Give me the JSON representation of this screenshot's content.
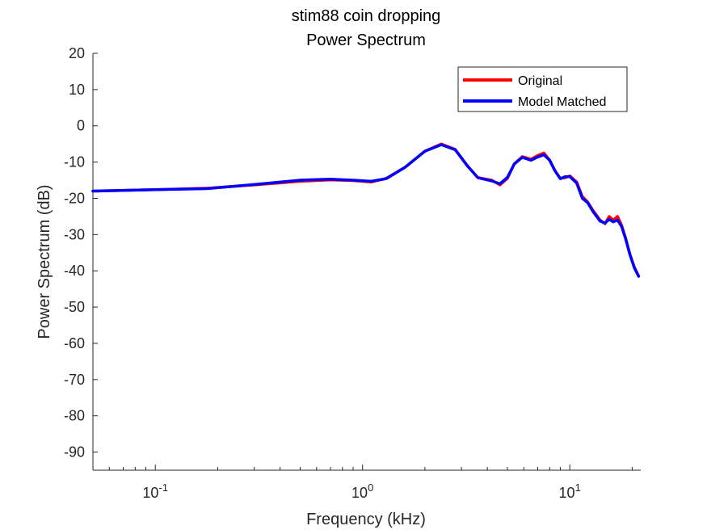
{
  "chart_data": {
    "type": "line",
    "title": "stim88 coin dropping",
    "subtitle": "Power Spectrum",
    "xlabel": "Frequency (kHz)",
    "ylabel": "Power Spectrum (dB)",
    "xscale": "log",
    "xlim": [
      0.05,
      22
    ],
    "ylim": [
      -95,
      20
    ],
    "yticks": [
      20,
      10,
      0,
      -10,
      -20,
      -30,
      -40,
      -50,
      -60,
      -70,
      -80,
      -90
    ],
    "xticks": [
      {
        "value": 0.1,
        "base": "10",
        "exp": "-1"
      },
      {
        "value": 1,
        "base": "10",
        "exp": "0"
      },
      {
        "value": 10,
        "base": "10",
        "exp": "1"
      }
    ],
    "grid": false,
    "legend_position": "top-right",
    "series": [
      {
        "name": "Original",
        "color": "#ff0000",
        "x": [
          0.05,
          0.1,
          0.18,
          0.3,
          0.5,
          0.7,
          0.9,
          1.1,
          1.3,
          1.6,
          2.0,
          2.4,
          2.8,
          3.2,
          3.6,
          4.2,
          4.6,
          5.0,
          5.4,
          5.9,
          6.5,
          7.0,
          7.5,
          8.0,
          8.5,
          9.0,
          9.5,
          10.0,
          10.8,
          11.5,
          12.2,
          13.0,
          14.0,
          14.8,
          15.5,
          16.2,
          17.0,
          17.8,
          18.6,
          19.5,
          20.5,
          21.5
        ],
        "y": [
          -18.0,
          -17.6,
          -17.2,
          -16.3,
          -15.3,
          -14.9,
          -15.1,
          -15.5,
          -14.5,
          -11.5,
          -7.0,
          -5.0,
          -6.5,
          -11.0,
          -14.3,
          -15.0,
          -16.3,
          -14.5,
          -10.5,
          -8.5,
          -9.2,
          -8.2,
          -7.5,
          -9.5,
          -12.5,
          -14.5,
          -14.3,
          -13.8,
          -15.5,
          -19.5,
          -21.0,
          -23.5,
          -26.0,
          -27.0,
          -25.0,
          -26.0,
          -25.0,
          -27.5,
          -31.0,
          -35.5,
          -39.0,
          -41.5
        ]
      },
      {
        "name": "Model Matched",
        "color": "#0000ff",
        "x": [
          0.05,
          0.1,
          0.18,
          0.3,
          0.5,
          0.7,
          0.9,
          1.1,
          1.3,
          1.6,
          2.0,
          2.4,
          2.8,
          3.2,
          3.6,
          4.2,
          4.6,
          5.0,
          5.4,
          5.9,
          6.5,
          7.0,
          7.5,
          8.0,
          8.5,
          9.0,
          9.5,
          10.0,
          10.8,
          11.5,
          12.2,
          13.0,
          14.0,
          14.8,
          15.5,
          16.2,
          17.0,
          17.8,
          18.6,
          19.5,
          20.5,
          21.5
        ],
        "y": [
          -18.0,
          -17.6,
          -17.3,
          -16.2,
          -15.0,
          -14.7,
          -15.0,
          -15.3,
          -14.6,
          -11.5,
          -7.0,
          -5.2,
          -6.6,
          -11.0,
          -14.3,
          -15.2,
          -16.0,
          -14.2,
          -10.5,
          -8.7,
          -9.5,
          -8.6,
          -8.0,
          -9.5,
          -12.5,
          -14.6,
          -14.0,
          -14.0,
          -15.8,
          -20.0,
          -21.2,
          -23.8,
          -26.3,
          -26.8,
          -25.8,
          -26.5,
          -26.0,
          -27.8,
          -31.2,
          -35.5,
          -39.2,
          -41.5
        ]
      }
    ]
  }
}
